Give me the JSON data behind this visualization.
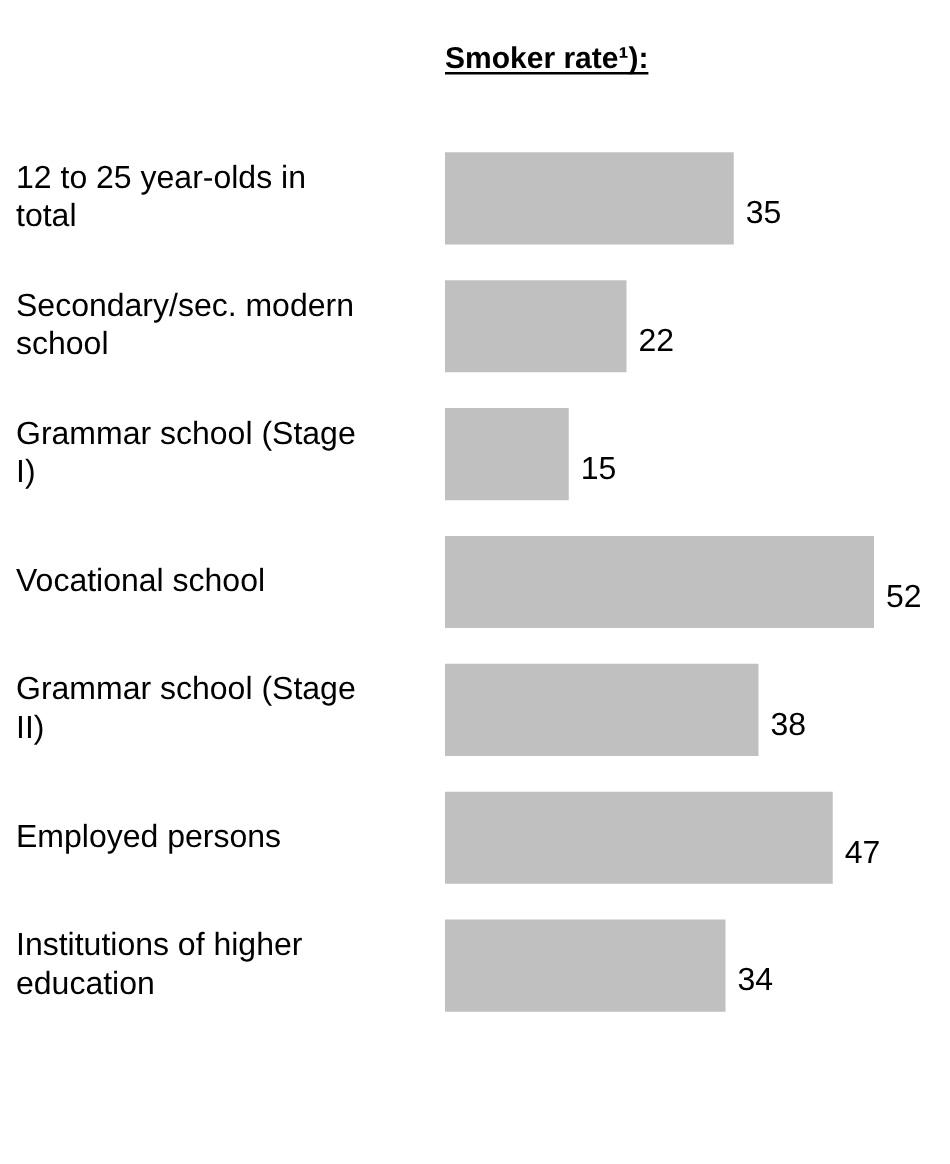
{
  "chart_data": {
    "type": "bar",
    "orientation": "horizontal",
    "title": "Smoker rate¹):",
    "categories": [
      "12 to 25 year-olds in total",
      "Secondary/sec. modern school",
      "Grammar school (Stage  I)",
      "Vocational school",
      "Grammar school (Stage II)",
      "Employed persons",
      "Institutions of higher education"
    ],
    "values": [
      35,
      22,
      15,
      52,
      38,
      47,
      34
    ],
    "color": "#c0c0c0",
    "data_labels": true,
    "grid": false,
    "legend": false
  }
}
